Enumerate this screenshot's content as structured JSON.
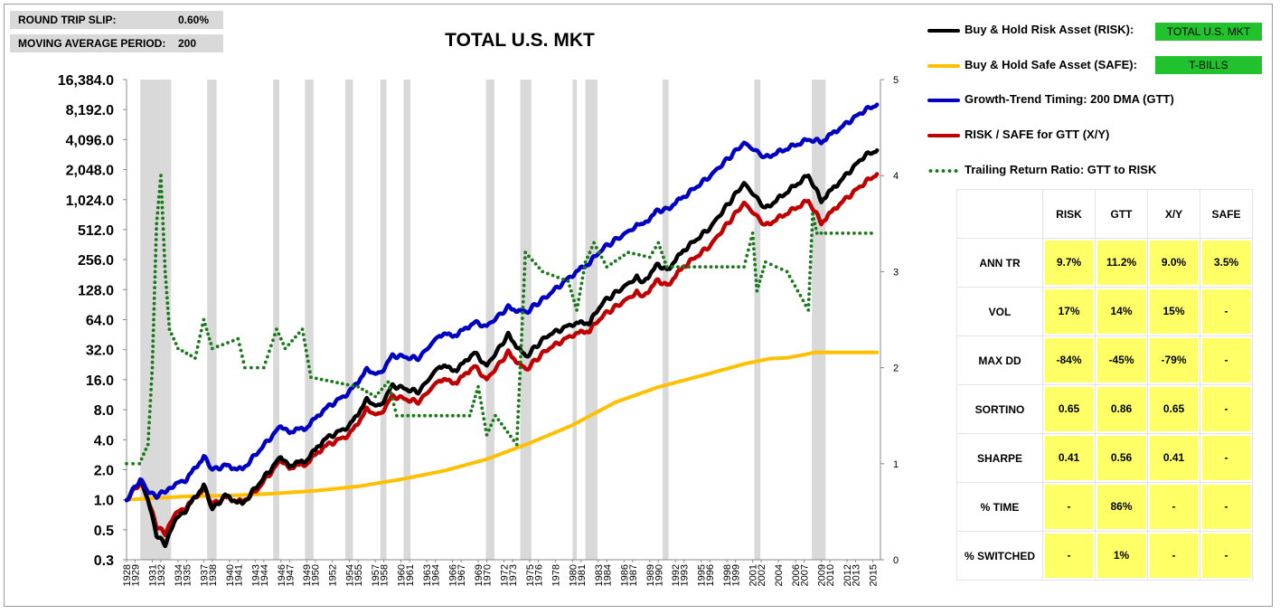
{
  "params": {
    "slip_label": "ROUND TRIP SLIP:",
    "slip_value": "0.60%",
    "ma_label": "MOVING AVERAGE PERIOD:",
    "ma_value": "200"
  },
  "legend": {
    "risk": "Buy & Hold Risk Asset (RISK):",
    "safe": "Buy & Hold Safe Asset (SAFE):",
    "gtt": "Growth-Trend Timing: 200 DMA (GTT)",
    "xy": "RISK / SAFE for GTT (X/Y)",
    "ratio": "Trailing Return Ratio: GTT to RISK",
    "risk_tag": "TOTAL U.S. MKT",
    "safe_tag": "T-BILLS"
  },
  "stats": {
    "headers": [
      "RISK",
      "GTT",
      "X/Y",
      "SAFE"
    ],
    "rows": [
      {
        "label": "ANN TR",
        "values": [
          "9.7%",
          "11.2%",
          "9.0%",
          "3.5%"
        ]
      },
      {
        "label": "VOL",
        "values": [
          "17%",
          "14%",
          "15%",
          "-"
        ]
      },
      {
        "label": "MAX DD",
        "values": [
          "-84%",
          "-45%",
          "-79%",
          "-"
        ]
      },
      {
        "label": "SORTINO",
        "values": [
          "0.65",
          "0.86",
          "0.65",
          "-"
        ]
      },
      {
        "label": "SHARPE",
        "values": [
          "0.41",
          "0.56",
          "0.41",
          "-"
        ]
      },
      {
        "label": "% TIME",
        "values": [
          "-",
          "86%",
          "-",
          "-"
        ]
      },
      {
        "label": "% SWITCHED",
        "values": [
          "-",
          "1%",
          "-",
          "-"
        ]
      }
    ]
  },
  "chart_data": {
    "type": "line",
    "title": "TOTAL U.S. MKT",
    "y_scale": "log2",
    "y_ticks": [
      0.25,
      0.5,
      1,
      2,
      4,
      8,
      16,
      32,
      64,
      128,
      256,
      512,
      1024,
      2048,
      4096,
      8192,
      16384
    ],
    "y_tick_labels": [
      "0.3",
      "0.5",
      "1.0",
      "2.0",
      "4.0",
      "8.0",
      "16.0",
      "32.0",
      "64.0",
      "128.0",
      "256.0",
      "512.0",
      "1,024.0",
      "2,048.0",
      "4,096.0",
      "8,192.0",
      "16,384.0"
    ],
    "y2_range": [
      0,
      5
    ],
    "y2_ticks": [
      0,
      1,
      2,
      3,
      4,
      5
    ],
    "x_range": [
      1928,
      2015.9
    ],
    "x_tick_years": [
      1928,
      1929,
      1931,
      1932,
      1934,
      1935,
      1937,
      1938,
      1940,
      1941,
      1943,
      1944,
      1946,
      1947,
      1949,
      1950,
      1952,
      1954,
      1955,
      1957,
      1958,
      1960,
      1961,
      1963,
      1964,
      1966,
      1967,
      1969,
      1970,
      1972,
      1973,
      1975,
      1976,
      1978,
      1980,
      1981,
      1983,
      1984,
      1986,
      1987,
      1989,
      1990,
      1992,
      1993,
      1995,
      1996,
      1998,
      1999,
      2001,
      2002,
      2004,
      2006,
      2007,
      2009,
      2010,
      2012,
      2013,
      2015
    ],
    "recessions": [
      [
        1929.6,
        1933.2
      ],
      [
        1937.4,
        1938.5
      ],
      [
        1945.1,
        1945.8
      ],
      [
        1948.8,
        1949.8
      ],
      [
        1953.5,
        1954.4
      ],
      [
        1957.6,
        1958.3
      ],
      [
        1960.3,
        1961.1
      ],
      [
        1969.9,
        1970.9
      ],
      [
        1973.9,
        1975.2
      ],
      [
        1980.0,
        1980.5
      ],
      [
        1981.5,
        1982.9
      ],
      [
        1990.5,
        1991.2
      ],
      [
        2001.2,
        2001.9
      ],
      [
        2007.9,
        2009.5
      ]
    ],
    "series": [
      {
        "name": "RISK",
        "color": "#000000",
        "points": [
          [
            1928,
            1.0
          ],
          [
            1929.6,
            1.6
          ],
          [
            1930.5,
            1.0
          ],
          [
            1931.5,
            0.45
          ],
          [
            1932.5,
            0.35
          ],
          [
            1933.5,
            0.6
          ],
          [
            1935,
            0.8
          ],
          [
            1937,
            1.4
          ],
          [
            1938,
            0.8
          ],
          [
            1939.5,
            1.1
          ],
          [
            1941.5,
            0.9
          ],
          [
            1943,
            1.3
          ],
          [
            1946,
            2.7
          ],
          [
            1947,
            2.2
          ],
          [
            1949,
            2.5
          ],
          [
            1951,
            4.0
          ],
          [
            1954,
            5.5
          ],
          [
            1956,
            10
          ],
          [
            1957.5,
            8.5
          ],
          [
            1959,
            14
          ],
          [
            1962,
            12
          ],
          [
            1964.5,
            22
          ],
          [
            1966.5,
            20
          ],
          [
            1968.5,
            30
          ],
          [
            1970,
            22
          ],
          [
            1972.5,
            45
          ],
          [
            1974.5,
            27
          ],
          [
            1977,
            44
          ],
          [
            1980,
            58
          ],
          [
            1982,
            60
          ],
          [
            1983.5,
            95
          ],
          [
            1987.5,
            170
          ],
          [
            1988,
            145
          ],
          [
            1990,
            230
          ],
          [
            1991,
            200
          ],
          [
            1993,
            320
          ],
          [
            1996,
            530
          ],
          [
            2000,
            1500
          ],
          [
            2002.5,
            830
          ],
          [
            2007.5,
            1800
          ],
          [
            2009,
            1000
          ],
          [
            2011,
            1500
          ],
          [
            2014,
            2800
          ],
          [
            2015.5,
            3200
          ]
        ]
      },
      {
        "name": "X/Y",
        "color": "#c00000",
        "points": [
          [
            1928,
            1.0
          ],
          [
            1929.6,
            1.5
          ],
          [
            1930.5,
            1.0
          ],
          [
            1931.5,
            0.55
          ],
          [
            1932.5,
            0.45
          ],
          [
            1933.5,
            0.7
          ],
          [
            1935,
            0.85
          ],
          [
            1937,
            1.3
          ],
          [
            1938,
            0.9
          ],
          [
            1939.5,
            1.05
          ],
          [
            1941.5,
            0.95
          ],
          [
            1943,
            1.2
          ],
          [
            1946,
            2.5
          ],
          [
            1947,
            2.1
          ],
          [
            1949,
            2.3
          ],
          [
            1951,
            3.4
          ],
          [
            1954,
            4.5
          ],
          [
            1956,
            8
          ],
          [
            1957.5,
            7
          ],
          [
            1959,
            11
          ],
          [
            1962,
            9.5
          ],
          [
            1964.5,
            16
          ],
          [
            1966.5,
            15
          ],
          [
            1968.5,
            22
          ],
          [
            1970,
            16
          ],
          [
            1972.5,
            30
          ],
          [
            1974.5,
            20
          ],
          [
            1977,
            32
          ],
          [
            1980,
            45
          ],
          [
            1982,
            50
          ],
          [
            1983.5,
            70
          ],
          [
            1987.5,
            120
          ],
          [
            1988,
            105
          ],
          [
            1990,
            160
          ],
          [
            1991,
            140
          ],
          [
            1993,
            220
          ],
          [
            1996,
            350
          ],
          [
            2000,
            950
          ],
          [
            2002.5,
            560
          ],
          [
            2007.5,
            1000
          ],
          [
            2009,
            600
          ],
          [
            2011,
            900
          ],
          [
            2014,
            1500
          ],
          [
            2015.5,
            1850
          ]
        ]
      },
      {
        "name": "GTT",
        "color": "#0000c0",
        "points": [
          [
            1928,
            1.0
          ],
          [
            1929.6,
            1.6
          ],
          [
            1930.5,
            1.2
          ],
          [
            1931.5,
            1.1
          ],
          [
            1932.5,
            1.2
          ],
          [
            1933.5,
            1.4
          ],
          [
            1935,
            1.6
          ],
          [
            1937,
            2.7
          ],
          [
            1938,
            2.0
          ],
          [
            1939.5,
            2.2
          ],
          [
            1941.5,
            2.0
          ],
          [
            1943,
            2.8
          ],
          [
            1946,
            5.5
          ],
          [
            1947,
            4.8
          ],
          [
            1949,
            5.3
          ],
          [
            1951,
            8
          ],
          [
            1954,
            12
          ],
          [
            1956,
            20
          ],
          [
            1957.5,
            18
          ],
          [
            1959,
            28
          ],
          [
            1962,
            26
          ],
          [
            1964.5,
            45
          ],
          [
            1966.5,
            45
          ],
          [
            1968.5,
            60
          ],
          [
            1970,
            55
          ],
          [
            1972.5,
            85
          ],
          [
            1974.5,
            75
          ],
          [
            1977,
            110
          ],
          [
            1980,
            180
          ],
          [
            1982,
            240
          ],
          [
            1983.5,
            330
          ],
          [
            1987.5,
            560
          ],
          [
            1988,
            560
          ],
          [
            1990,
            800
          ],
          [
            1991,
            820
          ],
          [
            1993,
            1100
          ],
          [
            1996,
            1750
          ],
          [
            2000,
            3800
          ],
          [
            2002.5,
            2700
          ],
          [
            2007.5,
            4100
          ],
          [
            2009,
            3900
          ],
          [
            2011,
            5200
          ],
          [
            2014,
            8000
          ],
          [
            2015.5,
            9200
          ]
        ]
      },
      {
        "name": "SAFE",
        "color": "#ffc000",
        "points": [
          [
            1928,
            1.0
          ],
          [
            1935,
            1.08
          ],
          [
            1940,
            1.1
          ],
          [
            1945,
            1.15
          ],
          [
            1950,
            1.23
          ],
          [
            1955,
            1.36
          ],
          [
            1960,
            1.6
          ],
          [
            1965,
            1.95
          ],
          [
            1970,
            2.55
          ],
          [
            1975,
            3.7
          ],
          [
            1980,
            5.6
          ],
          [
            1985,
            9.5
          ],
          [
            1990,
            13.5
          ],
          [
            1995,
            17.5
          ],
          [
            2000,
            23
          ],
          [
            2003,
            26
          ],
          [
            2005,
            26.5
          ],
          [
            2007,
            28.5
          ],
          [
            2008.2,
            30
          ],
          [
            2015.5,
            30
          ]
        ]
      },
      {
        "name": "Trailing Return Ratio",
        "color": "#1a7a1a",
        "axis": "y2",
        "points": [
          [
            1928,
            1.0
          ],
          [
            1929.5,
            1.0
          ],
          [
            1930.5,
            1.2
          ],
          [
            1931,
            2.0
          ],
          [
            1931.5,
            3.5
          ],
          [
            1932,
            4.0
          ],
          [
            1932.5,
            3.0
          ],
          [
            1933,
            2.4
          ],
          [
            1934,
            2.2
          ],
          [
            1936,
            2.1
          ],
          [
            1937,
            2.5
          ],
          [
            1938,
            2.2
          ],
          [
            1941,
            2.3
          ],
          [
            1941.8,
            2.0
          ],
          [
            1944,
            2.0
          ],
          [
            1945.5,
            2.4
          ],
          [
            1946.5,
            2.2
          ],
          [
            1948.5,
            2.4
          ],
          [
            1949.5,
            1.9
          ],
          [
            1955,
            1.8
          ],
          [
            1957,
            1.7
          ],
          [
            1958.5,
            1.85
          ],
          [
            1959.5,
            1.5
          ],
          [
            1968,
            1.5
          ],
          [
            1969,
            1.8
          ],
          [
            1970,
            1.3
          ],
          [
            1971,
            1.5
          ],
          [
            1973.5,
            1.2
          ],
          [
            1974.5,
            3.2
          ],
          [
            1976.5,
            3.0
          ],
          [
            1979.5,
            2.9
          ],
          [
            1980.5,
            2.6
          ],
          [
            1981.5,
            3.1
          ],
          [
            1982.5,
            3.3
          ],
          [
            1984,
            3.05
          ],
          [
            1986.5,
            3.2
          ],
          [
            1989,
            3.15
          ],
          [
            1990,
            3.3
          ],
          [
            1991,
            3.05
          ],
          [
            2000,
            3.05
          ],
          [
            2001,
            3.4
          ],
          [
            2001.5,
            2.8
          ],
          [
            2002.5,
            3.1
          ],
          [
            2005,
            3.0
          ],
          [
            2007.5,
            2.6
          ],
          [
            2008,
            3.6
          ],
          [
            2008.5,
            3.4
          ],
          [
            2009.5,
            3.4
          ],
          [
            2015.5,
            3.4
          ]
        ]
      }
    ]
  }
}
